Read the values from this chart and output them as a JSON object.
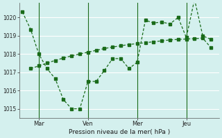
{
  "background_color": "#d4f0ee",
  "grid_color": "#ffffff",
  "line_color": "#1a6b1a",
  "title_label": "Pression niveau de la mer( hPa )",
  "ylim": [
    1014.5,
    1020.8
  ],
  "yticks": [
    1015,
    1016,
    1017,
    1018,
    1019,
    1020
  ],
  "day_labels": [
    "Mar",
    "Ven",
    "Mer",
    "Jeu"
  ],
  "day_positions": [
    1,
    4,
    7,
    10
  ],
  "series1_x": [
    0,
    0.5,
    1.0,
    1.5,
    2.0,
    2.5,
    3.0,
    3.5,
    4.0,
    4.5,
    5.0,
    5.5,
    6.0,
    6.5,
    7.0,
    7.5,
    8.0,
    8.5,
    9.0,
    9.5,
    10.0,
    10.5,
    11.0,
    11.5
  ],
  "series1_y": [
    1020.3,
    1019.35,
    1018.0,
    1017.2,
    1016.65,
    1015.5,
    1015.0,
    1015.0,
    1016.5,
    1016.5,
    1017.1,
    1017.75,
    1017.75,
    1017.2,
    1017.55,
    1019.85,
    1019.7,
    1019.75,
    1019.65,
    1020.0,
    1018.9,
    1021.0,
    1019.0,
    1018.8
  ],
  "series2_x": [
    0.5,
    1.0,
    1.5,
    2.0,
    2.5,
    3.0,
    3.5,
    4.0,
    4.5,
    5.0,
    5.5,
    6.0,
    6.5,
    7.0,
    7.5,
    8.0,
    8.5,
    9.0,
    9.5,
    10.0,
    10.5,
    11.0,
    11.5
  ],
  "series2_y": [
    1017.2,
    1017.35,
    1017.5,
    1017.65,
    1017.78,
    1017.9,
    1018.0,
    1018.1,
    1018.2,
    1018.3,
    1018.38,
    1018.45,
    1018.52,
    1018.57,
    1018.62,
    1018.67,
    1018.72,
    1018.77,
    1018.8,
    1018.82,
    1018.84,
    1018.87,
    1018.35
  ],
  "figsize": [
    3.2,
    2.0
  ],
  "dpi": 100
}
